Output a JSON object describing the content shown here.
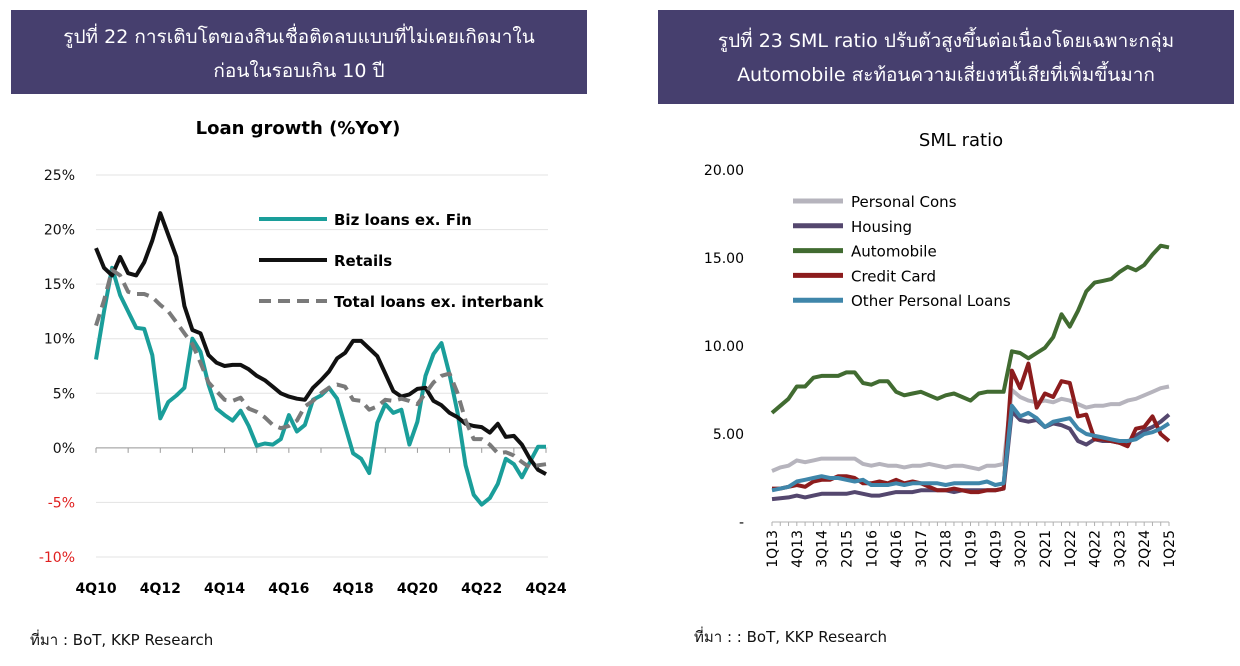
{
  "figure_left": {
    "header_line1": "รูปที่ 22 การเติบโตของสินเชื่อติดลบแบบที่ไม่เคยเกิดมาใน",
    "header_line2": "ก่อนในรอบเกิน 10 ปี",
    "source": "ที่มา :  BoT, KKP Research"
  },
  "figure_right": {
    "header_line1": "รูปที่ 23 SML ratio ปรับตัวสูงขึ้นต่อเนื่องโดยเฉพาะกลุ่ม",
    "header_line2": "Automobile สะท้อนความเสี่ยงหนี้เสียที่เพิ่มขึ้นมาก",
    "source": "ที่มา : : BoT, KKP Research"
  },
  "chart_data": [
    {
      "type": "line",
      "title": "Loan growth (%YoY)",
      "xlabel": "",
      "ylabel": "",
      "ylim": [
        -10,
        25
      ],
      "y_ticks": [
        "25%",
        "20%",
        "15%",
        "10%",
        "5%",
        "0%",
        "-5%",
        "-10%"
      ],
      "y_tick_values": [
        25,
        20,
        15,
        10,
        5,
        0,
        -5,
        -10
      ],
      "negative_tick_color": "#e02020",
      "x_labels": [
        "4Q10",
        "4Q12",
        "4Q14",
        "4Q16",
        "4Q18",
        "4Q20",
        "4Q22",
        "4Q24"
      ],
      "x_label_indices": [
        0,
        8,
        16,
        24,
        32,
        40,
        48,
        56
      ],
      "n_points": 57,
      "grid": true,
      "legend_position": "top-right",
      "series": [
        {
          "name": "Biz loans ex. Fin",
          "color": "#1a9e9a",
          "dash": false,
          "values": [
            8.1,
            12.5,
            16.5,
            14.0,
            12.5,
            11.0,
            10.9,
            8.5,
            2.7,
            4.2,
            4.8,
            5.5,
            10.0,
            8.8,
            5.8,
            3.6,
            3.0,
            2.5,
            3.4,
            2.0,
            0.2,
            0.4,
            0.3,
            0.8,
            3.0,
            1.5,
            2.1,
            4.4,
            4.8,
            5.5,
            4.5,
            2.0,
            -0.5,
            -1.0,
            -2.3,
            2.3,
            4.0,
            3.2,
            3.5,
            0.3,
            2.4,
            6.6,
            8.6,
            9.6,
            6.7,
            3.2,
            -1.6,
            -4.3,
            -5.2,
            -4.6,
            -3.3,
            -1.0,
            -1.5,
            -2.7,
            -1.3,
            0.1,
            0.1
          ]
        },
        {
          "name": "Retails",
          "color": "#111111",
          "dash": false,
          "values": [
            18.3,
            16.5,
            15.8,
            17.5,
            16.0,
            15.8,
            17.0,
            19.0,
            21.5,
            19.5,
            17.5,
            13.0,
            10.8,
            10.5,
            8.5,
            7.8,
            7.5,
            7.6,
            7.6,
            7.2,
            6.6,
            6.2,
            5.6,
            5.0,
            4.7,
            4.5,
            4.4,
            5.5,
            6.2,
            7.0,
            8.2,
            8.7,
            9.8,
            9.8,
            9.1,
            8.4,
            6.8,
            5.2,
            4.7,
            4.9,
            5.4,
            5.5,
            4.3,
            3.9,
            3.2,
            2.8,
            2.2,
            2.0,
            1.9,
            1.4,
            2.2,
            1.0,
            1.1,
            0.3,
            -1.0,
            -2.0,
            -2.4
          ]
        },
        {
          "name": "Total loans ex. interbank",
          "color": "#7a7a7a",
          "dash": true,
          "values": [
            11.2,
            13.5,
            16.3,
            15.8,
            14.3,
            14.1,
            14.1,
            13.8,
            13.1,
            12.5,
            11.5,
            10.5,
            9.5,
            7.8,
            6.0,
            5.2,
            4.4,
            4.3,
            4.6,
            3.6,
            3.3,
            2.8,
            2.1,
            1.8,
            2.0,
            2.5,
            3.8,
            4.3,
            5.0,
            5.5,
            5.8,
            5.6,
            4.4,
            4.3,
            3.5,
            3.8,
            4.4,
            4.3,
            4.5,
            4.3,
            4.0,
            5.0,
            6.0,
            6.6,
            6.8,
            5.0,
            2.5,
            0.8,
            0.8,
            0.3,
            -0.5,
            -0.4,
            -0.7,
            -1.3,
            -1.8,
            -1.6,
            -1.5
          ]
        }
      ]
    },
    {
      "type": "line",
      "title": "SML ratio",
      "xlabel": "",
      "ylabel": "",
      "ylim": [
        0,
        20
      ],
      "y_ticks": [
        "20.00",
        "15.00",
        "10.00",
        "5.00",
        "-"
      ],
      "y_tick_values": [
        20,
        15,
        10,
        5,
        0
      ],
      "x_labels": [
        "1Q13",
        "4Q13",
        "3Q14",
        "2Q15",
        "1Q16",
        "4Q16",
        "3Q17",
        "2Q18",
        "1Q19",
        "4Q19",
        "3Q20",
        "2Q21",
        "1Q22",
        "4Q22",
        "3Q23",
        "2Q24",
        "1Q25"
      ],
      "x_label_indices": [
        0,
        3,
        6,
        9,
        12,
        15,
        18,
        21,
        24,
        27,
        30,
        33,
        36,
        39,
        42,
        45,
        48
      ],
      "n_points": 49,
      "grid": false,
      "legend_position": "top-left",
      "series": [
        {
          "name": "Personal Cons",
          "color": "#b6b4bd",
          "values": [
            2.9,
            3.1,
            3.2,
            3.5,
            3.4,
            3.5,
            3.6,
            3.6,
            3.6,
            3.6,
            3.6,
            3.3,
            3.2,
            3.3,
            3.2,
            3.2,
            3.1,
            3.2,
            3.2,
            3.3,
            3.2,
            3.1,
            3.2,
            3.2,
            3.1,
            3.0,
            3.2,
            3.2,
            3.3,
            7.5,
            7.1,
            6.9,
            6.8,
            6.9,
            6.8,
            7.0,
            6.9,
            6.7,
            6.5,
            6.6,
            6.6,
            6.7,
            6.7,
            6.9,
            7.0,
            7.2,
            7.4,
            7.6,
            7.7
          ]
        },
        {
          "name": "Housing",
          "color": "#54476e",
          "values": [
            1.3,
            1.35,
            1.4,
            1.5,
            1.4,
            1.5,
            1.6,
            1.6,
            1.6,
            1.6,
            1.7,
            1.6,
            1.5,
            1.5,
            1.6,
            1.7,
            1.7,
            1.7,
            1.8,
            1.8,
            1.8,
            1.8,
            1.7,
            1.8,
            1.8,
            1.8,
            1.8,
            1.8,
            1.9,
            6.3,
            5.8,
            5.7,
            5.8,
            5.4,
            5.6,
            5.5,
            5.3,
            4.6,
            4.4,
            4.7,
            4.6,
            4.6,
            4.5,
            4.5,
            4.9,
            5.2,
            5.4,
            5.7,
            6.1
          ]
        },
        {
          "name": "Automobile",
          "color": "#416b31",
          "values": [
            6.2,
            6.6,
            7.0,
            7.7,
            7.7,
            8.2,
            8.3,
            8.3,
            8.3,
            8.5,
            8.5,
            7.9,
            7.8,
            8.0,
            8.0,
            7.4,
            7.2,
            7.3,
            7.4,
            7.2,
            7.0,
            7.2,
            7.3,
            7.1,
            6.9,
            7.3,
            7.4,
            7.4,
            7.4,
            9.7,
            9.6,
            9.3,
            9.6,
            9.9,
            10.5,
            11.8,
            11.1,
            12.0,
            13.1,
            13.6,
            13.7,
            13.8,
            14.2,
            14.5,
            14.3,
            14.6,
            15.2,
            15.7,
            15.6
          ]
        },
        {
          "name": "Credit Card",
          "color": "#8c1c1d",
          "values": [
            1.9,
            1.9,
            2.0,
            2.1,
            2.0,
            2.3,
            2.4,
            2.4,
            2.6,
            2.6,
            2.5,
            2.2,
            2.2,
            2.3,
            2.2,
            2.4,
            2.2,
            2.3,
            2.2,
            2.0,
            1.8,
            1.8,
            1.9,
            1.8,
            1.7,
            1.7,
            1.8,
            1.8,
            1.9,
            8.6,
            7.6,
            9.0,
            6.5,
            7.3,
            7.1,
            8.0,
            7.9,
            6.0,
            6.1,
            4.7,
            4.7,
            4.6,
            4.5,
            4.3,
            5.3,
            5.4,
            6.0,
            5.0,
            4.6
          ]
        },
        {
          "name": "Other Personal Loans",
          "color": "#3f86aa",
          "values": [
            1.8,
            1.9,
            2.0,
            2.3,
            2.4,
            2.5,
            2.6,
            2.5,
            2.5,
            2.4,
            2.3,
            2.4,
            2.1,
            2.1,
            2.1,
            2.2,
            2.1,
            2.2,
            2.2,
            2.2,
            2.2,
            2.1,
            2.2,
            2.2,
            2.2,
            2.2,
            2.3,
            2.1,
            2.2,
            6.6,
            6.0,
            6.2,
            5.9,
            5.4,
            5.7,
            5.8,
            5.9,
            5.3,
            5.0,
            4.9,
            4.8,
            4.7,
            4.6,
            4.6,
            4.7,
            5.0,
            5.1,
            5.3,
            5.6
          ]
        }
      ]
    }
  ]
}
